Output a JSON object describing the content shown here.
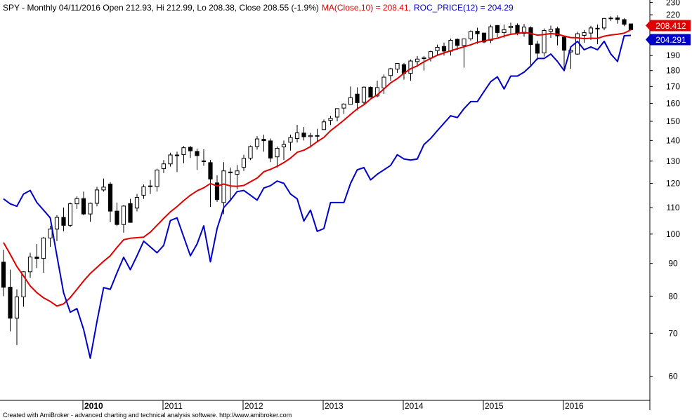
{
  "header": {
    "prefix": "SPY - Monthly 04/11/2016 Open 212.93, Hi 212.99, Lo 208.38, Close 208.55 (-1.9%)",
    "ma_label": "MA(Close,10) = 208.41,",
    "roc_label": "ROC_PRICE(12) = 204.29"
  },
  "footer": "Created with AmiBroker - advanced charting and technical analysis software. http://www.amibroker.com",
  "colors": {
    "ma": "#e00000",
    "roc": "#0000c8",
    "candle": "#000000",
    "background": "#ffffff"
  },
  "chart_data": {
    "type": "candlestick",
    "title": "SPY - Monthly",
    "y_scale": "log",
    "ylim": [
      55,
      232
    ],
    "y_ticks": [
      60,
      70,
      80,
      90,
      100,
      110,
      120,
      130,
      140,
      150,
      160,
      170,
      180,
      190,
      200,
      220,
      230
    ],
    "x_ticks": [
      {
        "label": "2010",
        "month": "2010-01",
        "bold": true
      },
      {
        "label": "2011",
        "month": "2011-01",
        "bold": false
      },
      {
        "label": "2012",
        "month": "2012-01",
        "bold": false
      },
      {
        "label": "2013",
        "month": "2013-01",
        "bold": false
      },
      {
        "label": "2014",
        "month": "2014-01",
        "bold": false
      },
      {
        "label": "2015",
        "month": "2015-01",
        "bold": false
      },
      {
        "label": "2016",
        "month": "2016-01",
        "bold": false
      }
    ],
    "months": [
      "2009-01",
      "2009-02",
      "2009-03",
      "2009-04",
      "2009-05",
      "2009-06",
      "2009-07",
      "2009-08",
      "2009-09",
      "2009-10",
      "2009-11",
      "2009-12",
      "2010-01",
      "2010-02",
      "2010-03",
      "2010-04",
      "2010-05",
      "2010-06",
      "2010-07",
      "2010-08",
      "2010-09",
      "2010-10",
      "2010-11",
      "2010-12",
      "2011-01",
      "2011-02",
      "2011-03",
      "2011-04",
      "2011-05",
      "2011-06",
      "2011-07",
      "2011-08",
      "2011-09",
      "2011-10",
      "2011-11",
      "2011-12",
      "2012-01",
      "2012-02",
      "2012-03",
      "2012-04",
      "2012-05",
      "2012-06",
      "2012-07",
      "2012-08",
      "2012-09",
      "2012-10",
      "2012-11",
      "2012-12",
      "2013-01",
      "2013-02",
      "2013-03",
      "2013-04",
      "2013-05",
      "2013-06",
      "2013-07",
      "2013-08",
      "2013-09",
      "2013-10",
      "2013-11",
      "2013-12",
      "2014-01",
      "2014-02",
      "2014-03",
      "2014-04",
      "2014-05",
      "2014-06",
      "2014-07",
      "2014-08",
      "2014-09",
      "2014-10",
      "2014-11",
      "2014-12",
      "2015-01",
      "2015-02",
      "2015-03",
      "2015-04",
      "2015-05",
      "2015-06",
      "2015-07",
      "2015-08",
      "2015-09",
      "2015-10",
      "2015-11",
      "2015-12",
      "2016-01",
      "2016-02",
      "2016-03",
      "2016-04",
      "2016-05",
      "2016-06",
      "2016-07",
      "2016-08",
      "2016-09",
      "2016-10",
      "2016-11"
    ],
    "open": [
      90.4,
      82.6,
      73.9,
      79.8,
      87.3,
      92.1,
      91.6,
      98.6,
      101.8,
      106.2,
      103.2,
      111.5,
      113.6,
      107.5,
      111.7,
      117.2,
      119.7,
      108.6,
      103.5,
      111.6,
      109.8,
      115.0,
      118.9,
      118.6,
      126.5,
      128.7,
      132.9,
      133.1,
      136.6,
      134.6,
      130.1,
      129.3,
      120.2,
      112.0,
      125.0,
      124.0,
      127.1,
      131.4,
      137.0,
      140.6,
      139.8,
      132.0,
      136.8,
      139.1,
      141.0,
      143.8,
      142.0,
      142.5,
      145.6,
      150.5,
      152.3,
      157.3,
      159.4,
      165.4,
      160.6,
      169.5,
      164.3,
      169.1,
      176.8,
      181.0,
      183.9,
      178.2,
      185.9,
      188.2,
      188.3,
      193.4,
      196.3,
      193.0,
      201.4,
      197.0,
      201.8,
      207.4,
      206.0,
      200.7,
      211.7,
      206.3,
      210.1,
      211.8,
      205.8,
      210.0,
      198.0,
      191.8,
      207.2,
      209.3,
      203.0,
      192.5,
      191.0,
      204.3,
      206.0,
      209.6,
      209.8,
      217.2,
      217.6,
      216.2,
      212.9
    ],
    "high": [
      94.5,
      88.0,
      82.0,
      87.5,
      93.5,
      96.5,
      99.0,
      103.0,
      107.0,
      110.0,
      112.0,
      114.5,
      116.5,
      112.0,
      118.5,
      122.1,
      120.5,
      112.0,
      111.0,
      113.5,
      115.5,
      119.5,
      121.5,
      126.5,
      130.5,
      134.0,
      134.5,
      137.2,
      137.3,
      136.0,
      135.6,
      130.5,
      123.5,
      129.5,
      127.0,
      128.2,
      133.0,
      137.5,
      142.2,
      143.0,
      141.0,
      137.0,
      140.0,
      143.0,
      148.1,
      147.0,
      143.9,
      146.0,
      151.0,
      153.0,
      157.2,
      160.0,
      170.0,
      169.5,
      170.0,
      170.0,
      173.5,
      177.5,
      181.8,
      184.7,
      185.0,
      187.4,
      189.7,
      189.7,
      193.4,
      197.6,
      199.0,
      201.9,
      202.0,
      201.9,
      208.0,
      210.0,
      206.0,
      212.2,
      212.0,
      212.5,
      213.8,
      213.3,
      212.9,
      211.0,
      200.5,
      209.4,
      211.6,
      210.7,
      203.5,
      196.0,
      206.9,
      208.3,
      211.5,
      212.5,
      217.5,
      218.8,
      219.6,
      217.2,
      212.99
    ],
    "low": [
      80.0,
      70.5,
      67.1,
      77.0,
      85.5,
      88.5,
      87.0,
      95.5,
      97.5,
      101.0,
      102.5,
      109.5,
      107.0,
      104.5,
      110.5,
      116.5,
      104.4,
      102.9,
      100.5,
      104.2,
      108.5,
      113.5,
      115.5,
      116.5,
      124.5,
      127.5,
      125.0,
      129.0,
      131.5,
      126.0,
      127.8,
      110.3,
      112.3,
      107.4,
      112.5,
      117.5,
      125.5,
      130.5,
      135.5,
      134.5,
      129.5,
      127.0,
      130.5,
      135.0,
      139.0,
      140.0,
      136.5,
      139.5,
      145.5,
      148.0,
      150.0,
      154.0,
      159.2,
      156.0,
      159.7,
      163.5,
      163.5,
      165.5,
      173.5,
      178.5,
      174.2,
      173.6,
      182.5,
      180.0,
      186.0,
      190.0,
      190.0,
      190.0,
      194.0,
      181.9,
      200.5,
      198.2,
      198.6,
      198.7,
      203.0,
      202.6,
      204.5,
      204.4,
      203.3,
      182.4,
      186.9,
      189.4,
      202.5,
      197.1,
      181.0,
      181.1,
      190.6,
      199.0,
      201.0,
      197.9,
      208.1,
      215.1,
      213.1,
      211.2,
      208.38
    ],
    "close": [
      82.6,
      73.9,
      79.8,
      87.3,
      92.1,
      91.6,
      98.6,
      101.8,
      106.2,
      103.2,
      111.5,
      113.6,
      107.5,
      111.7,
      117.2,
      118.4,
      108.6,
      103.5,
      110.6,
      104.3,
      114.1,
      118.5,
      118.6,
      125.9,
      128.7,
      132.9,
      132.6,
      136.4,
      134.9,
      132.6,
      129.8,
      121.9,
      113.2,
      125.5,
      124.8,
      125.5,
      131.3,
      137.0,
      140.8,
      139.9,
      131.4,
      136.1,
      138.0,
      141.5,
      143.9,
      141.9,
      142.5,
      142.4,
      149.7,
      151.6,
      157.0,
      159.6,
      163.3,
      160.4,
      169.6,
      163.6,
      169.3,
      175.8,
      181.2,
      184.7,
      178.2,
      186.3,
      187.6,
      188.4,
      192.7,
      195.7,
      193.1,
      200.7,
      197.0,
      201.7,
      207.2,
      205.5,
      199.5,
      210.7,
      206.4,
      208.5,
      211.1,
      205.9,
      210.5,
      197.7,
      191.6,
      207.9,
      208.7,
      203.9,
      193.7,
      193.6,
      205.5,
      206.3,
      209.8,
      209.5,
      217.1,
      217.4,
      216.3,
      212.6,
      208.55
    ],
    "series": [
      {
        "name": "MA(Close,10)",
        "values": [
          97,
          93,
          89,
          86,
          83,
          81,
          79.5,
          78.5,
          77.2,
          77.8,
          79.6,
          82.0,
          84.5,
          86.8,
          88.7,
          90.7,
          92.5,
          95.3,
          98.0,
          98.5,
          98.7,
          98.9,
          100.7,
          103.2,
          105.8,
          108.3,
          110.4,
          112.8,
          115.0,
          116.8,
          118.1,
          119.9,
          118.9,
          119.7,
          118.9,
          118.7,
          119.1,
          120.7,
          122.3,
          125.1,
          126.2,
          127.6,
          129.3,
          131.4,
          134.2,
          135.2,
          137.0,
          139.4,
          141.6,
          145.0,
          147.7,
          150.6,
          153.7,
          156.9,
          159.2,
          162.5,
          165.0,
          168.5,
          172.2,
          174.9,
          178.3,
          181.2,
          183.1,
          185.8,
          188.0,
          190.2,
          191.8,
          193.3,
          194.7,
          196.1,
          197.5,
          199.3,
          200.2,
          201.3,
          202.2,
          203.8,
          205.1,
          205.7,
          206.5,
          205.7,
          204.5,
          204.9,
          205.6,
          205.2,
          203.8,
          202.7,
          202.5,
          201.9,
          202.2,
          202.1,
          203.7,
          204.6,
          205.1,
          206.0,
          208.412
        ]
      },
      {
        "name": "ROC_PRICE(12)",
        "values": [
          113.5,
          111.5,
          110.5,
          115.5,
          117.0,
          112.0,
          109.0,
          106.0,
          92.5,
          81.0,
          75.5,
          76.5,
          71.0,
          64.0,
          73.0,
          82.5,
          82.0,
          87.0,
          92.0,
          88.0,
          92.5,
          97.5,
          95.5,
          93.5,
          96.0,
          105.0,
          106.0,
          99.0,
          92.5,
          96.5,
          103.0,
          90.5,
          102.0,
          110.0,
          113.0,
          116.5,
          117.0,
          115.0,
          113.0,
          118.0,
          119.0,
          121.0,
          120.0,
          115.5,
          113.5,
          104.8,
          109.0,
          101.0,
          102.0,
          112.0,
          112.0,
          112.0,
          120.0,
          126.0,
          127.0,
          121.5,
          124.0,
          126.0,
          128.0,
          133.0,
          131.0,
          130.5,
          131.0,
          138.0,
          141.0,
          145.0,
          149.0,
          153.0,
          152.0,
          157.0,
          161.0,
          161.0,
          167.0,
          173.0,
          176.0,
          168.5,
          176.5,
          176.5,
          179.0,
          183.0,
          188.0,
          188.0,
          191.0,
          186.0,
          180.0,
          196.0,
          200.0,
          194.0,
          196.0,
          194.0,
          200.0,
          191.0,
          186.0,
          204.0,
          204.291
        ]
      }
    ],
    "last_labels": [
      "208.412",
      "204.291"
    ]
  }
}
